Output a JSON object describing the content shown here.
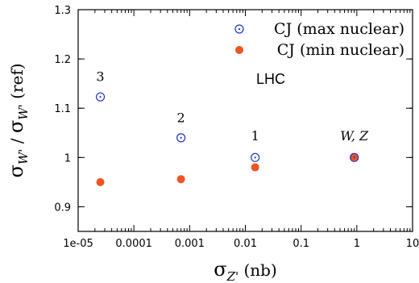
{
  "chart_data": {
    "type": "scatter",
    "x_scale": "log",
    "xlim": [
      1e-05,
      10
    ],
    "ylim": [
      0.85,
      1.3
    ],
    "x_ticks": [
      1e-05,
      0.0001,
      0.001,
      0.01,
      0.1,
      1,
      10
    ],
    "x_tick_labels": [
      "1e-05",
      "0.0001",
      "0.001",
      "0.01",
      "0.1",
      "1",
      "10"
    ],
    "y_ticks": [
      0.9,
      1,
      1.1,
      1.2,
      1.3
    ],
    "y_tick_labels": [
      "0.9",
      "1",
      "1.1",
      "1.2",
      "1.3"
    ],
    "xlabel": {
      "sigma": "σ",
      "sub": "Z'",
      "unit": " (nb)"
    },
    "ylabel": {
      "sigma1": "σ",
      "sub1": "W'",
      "slash": " / ",
      "sigma2": "σ",
      "sub2": "W'",
      "ref": " (ref)"
    },
    "grid": false,
    "legend_position": "top-right",
    "series": [
      {
        "name": "CJ (max nuclear)",
        "marker": "open-circle-dot",
        "color": "#2233cc",
        "points": [
          {
            "x": 2.5e-05,
            "y": 1.123
          },
          {
            "x": 0.0007,
            "y": 1.04
          },
          {
            "x": 0.015,
            "y": 1.0
          },
          {
            "x": 0.9,
            "y": 1.0
          }
        ]
      },
      {
        "name": "CJ (min nuclear)",
        "marker": "filled-circle",
        "color": "#ee5522",
        "points": [
          {
            "x": 2.5e-05,
            "y": 0.95
          },
          {
            "x": 0.0007,
            "y": 0.956
          },
          {
            "x": 0.015,
            "y": 0.98
          },
          {
            "x": 0.9,
            "y": 1.001
          }
        ]
      }
    ],
    "annotations": [
      {
        "text": "3",
        "x": 2.5e-05,
        "y": 1.155,
        "italic": false
      },
      {
        "text": "2",
        "x": 0.0007,
        "y": 1.072,
        "italic": false
      },
      {
        "text": "1",
        "x": 0.015,
        "y": 1.035,
        "italic": false
      },
      {
        "text": "W, Z",
        "x": 0.9,
        "y": 1.035,
        "italic": true
      }
    ],
    "extra_label": "LHC"
  }
}
